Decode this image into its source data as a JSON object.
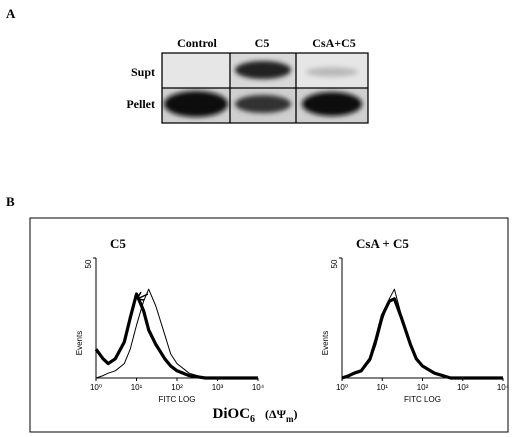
{
  "panel_a": {
    "label": "A",
    "columns": [
      "Control",
      "C5",
      "CsA+C5"
    ],
    "rows": [
      "Supt",
      "Pellet"
    ]
  },
  "panel_b": {
    "label": "B",
    "footer": {
      "main": "DiOC",
      "sub": "6",
      "paren": "(ΔΨ",
      "psi_sub": "m",
      "close": ")"
    }
  },
  "chart_data": [
    {
      "type": "line",
      "title": "C5",
      "xlabel": "FITC LOG",
      "ylabel": "Events",
      "xscale": "log",
      "xlim": [
        1,
        10000
      ],
      "ylim": [
        0,
        50
      ],
      "yticks": [
        50
      ],
      "xticks": [
        {
          "value": 1,
          "label": "10⁰"
        },
        {
          "value": 10,
          "label": "10¹"
        },
        {
          "value": 100,
          "label": "10²"
        },
        {
          "value": 1000,
          "label": "10³"
        },
        {
          "value": 10000,
          "label": "10⁴"
        }
      ],
      "x": [
        1,
        1.5,
        2,
        3,
        5,
        7,
        10,
        15,
        20,
        30,
        50,
        70,
        100,
        200,
        500,
        1000,
        10000
      ],
      "series": [
        {
          "color": "#000000",
          "values": [
            12,
            8,
            6,
            8,
            15,
            25,
            35,
            28,
            20,
            14,
            8,
            5,
            3,
            1,
            0,
            0,
            0
          ]
        },
        {
          "color": "#000000",
          "values": [
            0,
            1,
            2,
            3,
            6,
            12,
            22,
            32,
            37,
            30,
            18,
            10,
            6,
            2,
            0,
            0,
            0
          ]
        }
      ]
    },
    {
      "type": "line",
      "title": "CsA + C5",
      "xlabel": "FITC LOG",
      "ylabel": "Events",
      "xscale": "log",
      "xlim": [
        1,
        10000
      ],
      "ylim": [
        0,
        50
      ],
      "yticks": [
        50
      ],
      "xticks": [
        {
          "value": 1,
          "label": "10⁰"
        },
        {
          "value": 10,
          "label": "10¹"
        },
        {
          "value": 100,
          "label": "10²"
        },
        {
          "value": 1000,
          "label": "10³"
        },
        {
          "value": 10000,
          "label": "10⁴"
        }
      ],
      "x": [
        1,
        1.5,
        2,
        3,
        5,
        7,
        10,
        15,
        20,
        30,
        50,
        70,
        100,
        200,
        500,
        1000,
        10000
      ],
      "series": [
        {
          "color": "#000000",
          "values": [
            0,
            1,
            2,
            3,
            8,
            16,
            26,
            32,
            33,
            25,
            14,
            8,
            5,
            2,
            0,
            0,
            0
          ]
        },
        {
          "color": "#000000",
          "values": [
            0,
            1,
            2,
            3,
            7,
            14,
            24,
            33,
            37,
            26,
            14,
            8,
            5,
            2,
            0,
            0,
            0
          ]
        }
      ]
    }
  ]
}
